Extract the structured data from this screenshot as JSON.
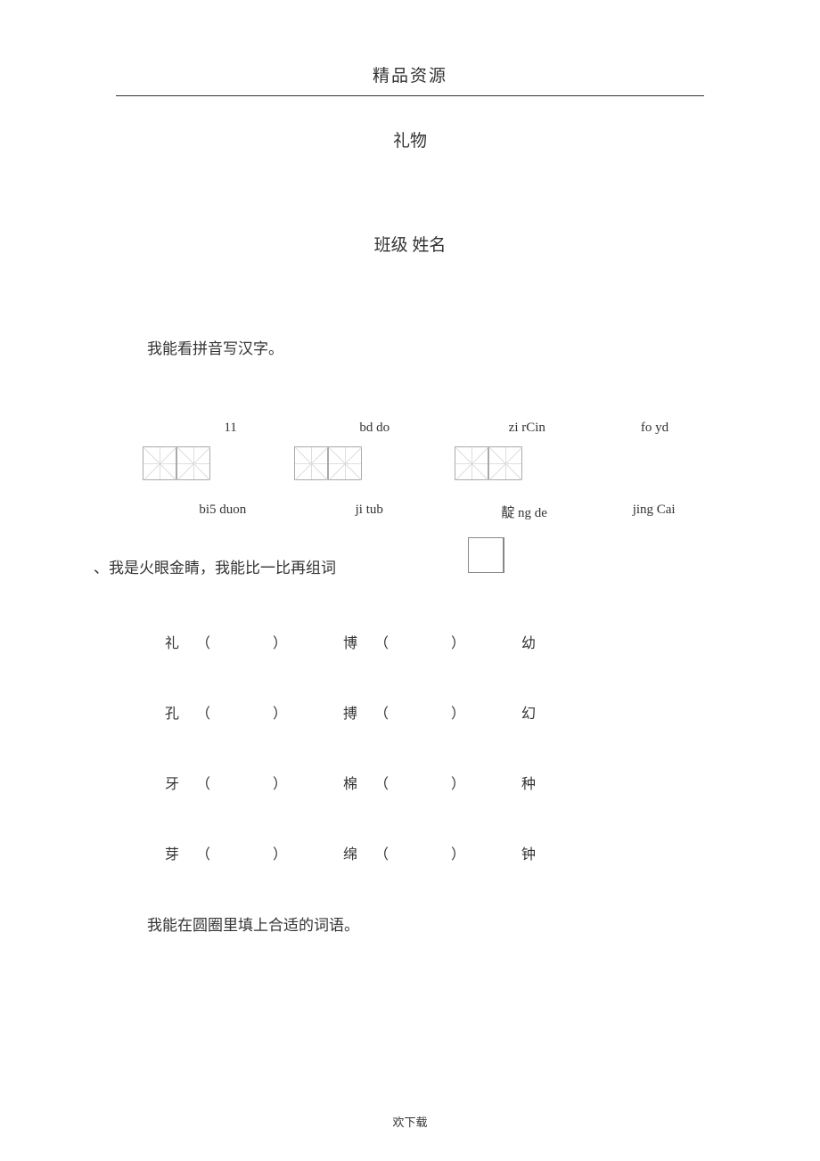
{
  "header": {
    "brand": "精品资源"
  },
  "title": "礼物",
  "class_name_line": "班级  姓名",
  "section1": {
    "label": "我能看拼音写汉字。",
    "row1": [
      "11",
      "bd do",
      "zi rCin",
      "fo yd"
    ],
    "row2": [
      "bi5 duon",
      "ji tub",
      "靛  ng de",
      "jing Cai"
    ]
  },
  "section2": {
    "label": "、我是火眼金睛，我能比一比再组词",
    "rows": [
      [
        "礼",
        "博",
        "幼"
      ],
      [
        "孔",
        "搏",
        "幻"
      ],
      [
        "牙",
        "棉",
        "种"
      ],
      [
        "芽",
        "绵",
        "钟"
      ]
    ]
  },
  "section3": {
    "label": "我能在圆圈里填上合适的词语。"
  },
  "footer": "欢下载",
  "paren_left": "（",
  "paren_right": "）"
}
